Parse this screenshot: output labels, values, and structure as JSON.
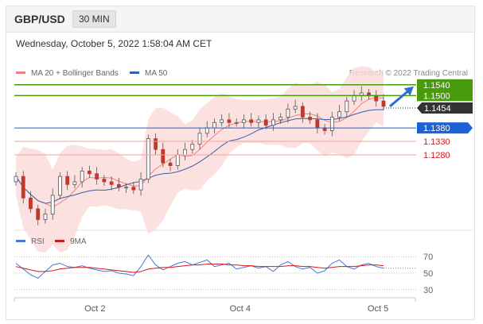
{
  "header": {
    "pair": "GBP/USD",
    "timeframe": "30 MIN"
  },
  "timestamp": "Wednesday, October 5, 2022 1:58:04 AM CET",
  "credit": "Research © 2022 Trading Central",
  "chart_data": [
    {
      "type": "candlestick",
      "title": "GBP/USD",
      "legend": [
        "MA 20 + Bollinger Bands",
        "MA 50"
      ],
      "legend_colors": {
        "MA 20 + Bollinger Bands": "#f08080",
        "MA 50": "#3a5ea8"
      },
      "ylim": [
        1.1,
        1.156
      ],
      "current_price": 1.1454,
      "levels": [
        {
          "label": "1.1540",
          "value": 1.154,
          "kind": "resistance",
          "color": "#4a9a0e"
        },
        {
          "label": "1.1500",
          "value": 1.15,
          "kind": "resistance",
          "color": "#4a9a0e"
        },
        {
          "label": "1.1454",
          "value": 1.1454,
          "kind": "last",
          "color": "#333333"
        },
        {
          "label": "1.1380",
          "value": 1.138,
          "kind": "pivot",
          "color": "#1c62d4"
        },
        {
          "label": "1.1330",
          "value": 1.133,
          "kind": "support",
          "color": "#d0191d"
        },
        {
          "label": "1.1280",
          "value": 1.128,
          "kind": "support",
          "color": "#d0191d"
        }
      ],
      "x_ticks": [
        "Oct 2",
        "Oct 4",
        "Oct 5"
      ],
      "projection": {
        "from": 1.146,
        "to": 1.154
      },
      "closes": [
        1.12,
        1.112,
        1.108,
        1.104,
        1.106,
        1.113,
        1.12,
        1.117,
        1.118,
        1.122,
        1.121,
        1.119,
        1.118,
        1.117,
        1.116,
        1.116,
        1.115,
        1.119,
        1.134,
        1.13,
        1.125,
        1.124,
        1.128,
        1.13,
        1.132,
        1.136,
        1.138,
        1.14,
        1.141,
        1.14,
        1.14,
        1.141,
        1.14,
        1.141,
        1.139,
        1.141,
        1.142,
        1.145,
        1.146,
        1.142,
        1.141,
        1.138,
        1.137,
        1.142,
        1.144,
        1.148,
        1.15,
        1.151,
        1.15,
        1.148,
        1.146
      ]
    },
    {
      "type": "line",
      "legend": [
        "RSI",
        "9MA"
      ],
      "legend_colors": {
        "RSI": "#4a78d8",
        "9MA": "#d0191d"
      },
      "ylim": [
        25,
        75
      ],
      "y_ticks": [
        70,
        50,
        30
      ],
      "x_ticks": [
        "Oct 2",
        "Oct 4",
        "Oct 5"
      ],
      "rsi": [
        62,
        55,
        48,
        44,
        52,
        60,
        62,
        58,
        57,
        59,
        56,
        54,
        52,
        53,
        50,
        49,
        47,
        58,
        72,
        60,
        54,
        58,
        62,
        64,
        60,
        63,
        66,
        58,
        60,
        62,
        55,
        57,
        59,
        56,
        58,
        52,
        60,
        64,
        58,
        55,
        57,
        50,
        53,
        62,
        66,
        58,
        55,
        60,
        62,
        58,
        56
      ],
      "ma9": [
        58,
        56,
        54,
        52,
        52,
        53,
        55,
        56,
        57,
        57,
        57,
        56,
        55,
        54,
        53,
        52,
        51,
        52,
        55,
        56,
        57,
        57,
        58,
        59,
        60,
        60,
        61,
        61,
        61,
        60,
        60,
        59,
        59,
        58,
        58,
        58,
        58,
        59,
        59,
        58,
        58,
        57,
        56,
        57,
        58,
        58,
        58,
        59,
        60,
        60,
        59
      ]
    }
  ]
}
